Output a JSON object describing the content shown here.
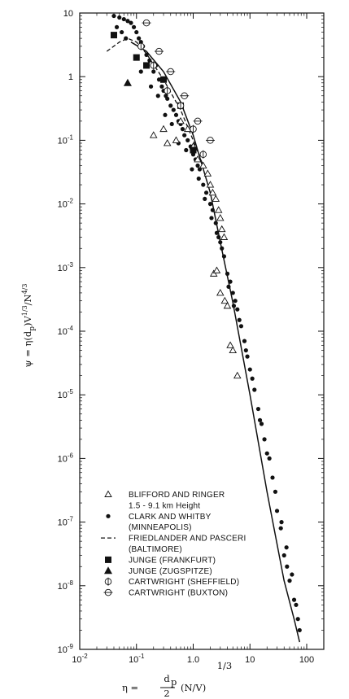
{
  "chart_data": {
    "type": "scatter",
    "title": "",
    "x_scale": "log",
    "y_scale": "log",
    "xlim": [
      0.01,
      200
    ],
    "ylim": [
      1e-09,
      10
    ],
    "x_tick_labels": [
      {
        "value": 0.01,
        "base": "10",
        "exp": "-2"
      },
      {
        "value": 0.1,
        "base": "10",
        "exp": "-1"
      },
      {
        "value": 1,
        "base": "1.0",
        "exp": ""
      },
      {
        "value": 10,
        "base": "10",
        "exp": ""
      },
      {
        "value": 100,
        "base": "100",
        "exp": ""
      }
    ],
    "y_tick_labels": [
      {
        "value": 10,
        "base": "10",
        "exp": ""
      },
      {
        "value": 1,
        "base": "1",
        "exp": ""
      },
      {
        "value": 0.1,
        "base": "10",
        "exp": "-1"
      },
      {
        "value": 0.01,
        "base": "10",
        "exp": "-2"
      },
      {
        "value": 0.001,
        "base": "10",
        "exp": "-3"
      },
      {
        "value": 0.0001,
        "base": "10",
        "exp": "-4"
      },
      {
        "value": 1e-05,
        "base": "10",
        "exp": "-5"
      },
      {
        "value": 1e-06,
        "base": "10",
        "exp": "-6"
      },
      {
        "value": 1e-07,
        "base": "10",
        "exp": "-7"
      },
      {
        "value": 1e-08,
        "base": "10",
        "exp": "-8"
      },
      {
        "value": 1e-09,
        "base": "10",
        "exp": "-9"
      }
    ],
    "ylabel": "ψ = η(d_p)V^{1/3}/N^{4/3}",
    "xlabel_main": "η = d_p/2 (N/V)",
    "xlabel_exp": "1/3",
    "legend_entries": [
      {
        "marker": "triangle-open",
        "label": "BLIFFORD AND RINGER",
        "sub": "1.5 - 9.1 km Height"
      },
      {
        "marker": "dot",
        "label": "CLARK AND WHITBY",
        "sub": "(MINNEAPOLIS)"
      },
      {
        "marker": "dashed-line",
        "label": "FRIEDLANDER AND PASCERI",
        "sub": "(BALTIMORE)"
      },
      {
        "marker": "square-filled",
        "label": "JUNGE (FRANKFURT)",
        "sub": ""
      },
      {
        "marker": "triangle-filled",
        "label": "JUNGE (ZUGSPITZE)",
        "sub": ""
      },
      {
        "marker": "circle-vbar",
        "label": "CARTWRIGHT (SHEFFIELD)",
        "sub": ""
      },
      {
        "marker": "circle-hbar",
        "label": "CARTWRIGHT (BUXTON)",
        "sub": ""
      }
    ],
    "solid_curve": {
      "x": [
        0.08,
        0.15,
        0.3,
        0.6,
        1.0,
        2.0,
        3.0,
        5.0,
        10,
        20,
        40,
        60,
        75
      ],
      "y": [
        3.5,
        2.5,
        1.2,
        0.4,
        0.12,
        0.015,
        0.0025,
        0.00028,
        1e-05,
        3e-07,
        1.2e-08,
        3e-09,
        1.3e-09
      ]
    },
    "dashed_curve": {
      "x": [
        0.03,
        0.05,
        0.07,
        0.1,
        0.15,
        0.3,
        0.6,
        1.0,
        1.5
      ],
      "y": [
        2.5,
        3.5,
        4.0,
        3.5,
        2.3,
        0.9,
        0.3,
        0.1,
        0.04
      ]
    },
    "series": [
      {
        "name": "CLARK AND WHITBY (MINNEAPOLIS)",
        "marker": "dot",
        "x": [
          0.04,
          0.05,
          0.06,
          0.07,
          0.08,
          0.045,
          0.055,
          0.065,
          0.09,
          0.1,
          0.11,
          0.12,
          0.13,
          0.15,
          0.17,
          0.2,
          0.22,
          0.25,
          0.28,
          0.3,
          0.33,
          0.35,
          0.4,
          0.45,
          0.5,
          0.55,
          0.6,
          0.65,
          0.7,
          0.8,
          0.9,
          1.0,
          1.1,
          1.2,
          1.3,
          1.5,
          1.7,
          2.0,
          2.2,
          2.5,
          2.8,
          3.0,
          3.5,
          4.0,
          4.5,
          5.0,
          5.5,
          6.0,
          7.0,
          8.0,
          9.0,
          10,
          12,
          14,
          16,
          18,
          20,
          25,
          30,
          35,
          40,
          45,
          50,
          60,
          70,
          75,
          0.12,
          0.18,
          0.24,
          0.32,
          0.42,
          0.55,
          0.75,
          0.95,
          1.25,
          1.6,
          2.1,
          2.6,
          3.2,
          4.2,
          5.2,
          6.5,
          8.5,
          11,
          15,
          22,
          28,
          36,
          44,
          55,
          65
        ],
        "y": [
          9,
          8.5,
          8,
          7.5,
          7,
          6,
          5,
          4,
          6,
          5,
          4,
          3.5,
          3,
          2.2,
          1.8,
          1.2,
          1.5,
          0.9,
          0.7,
          0.6,
          0.5,
          0.45,
          0.35,
          0.3,
          0.25,
          0.2,
          0.18,
          0.15,
          0.12,
          0.1,
          0.08,
          0.06,
          0.05,
          0.04,
          0.035,
          0.02,
          0.015,
          0.01,
          0.008,
          0.005,
          0.003,
          0.0025,
          0.0015,
          0.0008,
          0.0006,
          0.0004,
          0.0003,
          0.00022,
          0.00012,
          7e-05,
          4e-05,
          2.5e-05,
          1.2e-05,
          6e-06,
          3.5e-06,
          2e-06,
          1.2e-06,
          5e-07,
          1.5e-07,
          8e-08,
          3e-08,
          2e-08,
          1.2e-08,
          6e-09,
          3e-09,
          2e-09,
          1.2,
          0.7,
          0.5,
          0.25,
          0.18,
          0.09,
          0.07,
          0.035,
          0.025,
          0.012,
          0.006,
          0.0035,
          0.002,
          0.0005,
          0.00025,
          0.00015,
          5e-05,
          1.8e-05,
          4e-06,
          1e-06,
          3e-07,
          1e-07,
          4e-08,
          1.5e-08,
          5e-09
        ]
      },
      {
        "name": "BLIFFORD AND RINGER 1.5 - 9.1 km Height",
        "marker": "triangle-open",
        "x": [
          0.2,
          0.3,
          0.35,
          0.5,
          0.6,
          0.8,
          1.0,
          1.2,
          1.5,
          1.8,
          2.0,
          2.2,
          2.5,
          2.8,
          3.0,
          3.2,
          3.5,
          2.3,
          2.6,
          3.0,
          3.6,
          4.0,
          4.5,
          5.0,
          6.0
        ],
        "y": [
          0.12,
          0.15,
          0.09,
          0.1,
          0.2,
          0.15,
          0.08,
          0.05,
          0.04,
          0.03,
          0.02,
          0.015,
          0.012,
          0.008,
          0.006,
          0.004,
          0.003,
          0.0008,
          0.0009,
          0.0004,
          0.0003,
          0.00025,
          6e-05,
          5e-05,
          2e-05
        ]
      },
      {
        "name": "JUNGE (FRANKFURT)",
        "marker": "square-filled",
        "x": [
          0.04,
          0.1,
          0.15,
          0.3,
          0.6,
          1.0
        ],
        "y": [
          4.5,
          2.0,
          1.5,
          0.9,
          0.35,
          0.07
        ]
      },
      {
        "name": "JUNGE (ZUGSPITZE)",
        "marker": "triangle-filled",
        "x": [
          0.07
        ],
        "y": [
          0.8
        ]
      },
      {
        "name": "CARTWRIGHT (SHEFFIELD)",
        "marker": "circle-vbar",
        "x": [
          0.12,
          0.2,
          0.35,
          0.6,
          1.0,
          1.5
        ],
        "y": [
          3.0,
          1.5,
          0.6,
          0.35,
          0.15,
          0.06
        ]
      },
      {
        "name": "CARTWRIGHT (BUXTON)",
        "marker": "circle-hbar",
        "x": [
          0.15,
          0.25,
          0.4,
          0.7,
          1.2,
          2.0
        ],
        "y": [
          7.0,
          2.5,
          1.2,
          0.5,
          0.2,
          0.1
        ]
      }
    ]
  }
}
